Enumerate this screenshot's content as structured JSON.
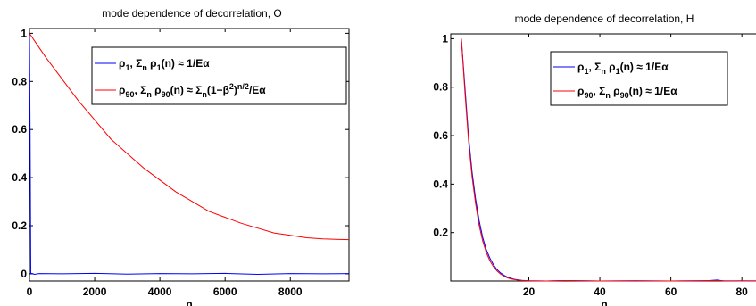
{
  "chart_data": [
    {
      "type": "line",
      "title": "mode dependence of decorrelation, O",
      "xlabel": "n",
      "ylabel": "",
      "xlim": [
        0,
        9800
      ],
      "ylim": [
        -0.03,
        1.02
      ],
      "xticks": [
        0,
        2000,
        4000,
        6000,
        8000
      ],
      "xtick_labels": [
        "0",
        "2000",
        "4000",
        "6000",
        "8000"
      ],
      "yticks": [
        0,
        0.2,
        0.4,
        0.6,
        0.8,
        1
      ],
      "ytick_labels": [
        "0",
        "0.2",
        "0.4",
        "0.6",
        "0.8",
        "1"
      ],
      "grid": false,
      "legend_position": "top-right",
      "series": [
        {
          "name_main": "ρ",
          "name_sub": "1",
          "name_rest": ", Σ",
          "name_sub2": "n",
          "name_tail": " ρ",
          "name_sub3": "1",
          "name_end": "(n) ≈ 1/Eα",
          "color": "#0000ff",
          "x": [
            0,
            20,
            40,
            80,
            150,
            300,
            1000,
            2000,
            3000,
            4000,
            5000,
            6000,
            7000,
            8000,
            9000,
            9800
          ],
          "y": [
            1.0,
            0.6,
            0.0,
            0.002,
            -0.002,
            0.001,
            0.0,
            0.002,
            -0.001,
            0.001,
            0.0,
            0.002,
            -0.002,
            0.001,
            0.0,
            0.001
          ]
        },
        {
          "name_main": "ρ",
          "name_sub": "90",
          "name_rest": ", Σ",
          "name_sub2": "n",
          "name_tail": " ρ",
          "name_sub3": "90",
          "name_end": "(n) ≈ Σ",
          "name_sub4": "n",
          "name_end2": "(1−β",
          "name_sup": "2",
          "name_end3": ")",
          "name_sup2": "n/2",
          "name_end4": "/Eα",
          "color": "#ff0000",
          "x": [
            0,
            200,
            500,
            1000,
            1500,
            2000,
            2500,
            3000,
            3500,
            4000,
            4500,
            5000,
            5500,
            6000,
            6500,
            7000,
            7500,
            8000,
            8500,
            9000,
            9500,
            9800
          ],
          "y": [
            1.0,
            0.96,
            0.9,
            0.81,
            0.72,
            0.64,
            0.56,
            0.5,
            0.44,
            0.39,
            0.34,
            0.3,
            0.26,
            0.235,
            0.21,
            0.19,
            0.17,
            0.16,
            0.15,
            0.145,
            0.143,
            0.142
          ]
        }
      ]
    },
    {
      "type": "line",
      "title": "mode dependence of decorrelation, H",
      "xlabel": "n",
      "ylabel": "",
      "xlim": [
        -2,
        88
      ],
      "ylim": [
        0,
        1.02
      ],
      "xticks": [
        20,
        40,
        60,
        80
      ],
      "xtick_labels": [
        "20",
        "40",
        "60",
        "80"
      ],
      "yticks": [
        0.2,
        0.4,
        0.6,
        0.8,
        1
      ],
      "ytick_labels": [
        "0.2",
        "0.4",
        "0.6",
        "0.8",
        "1"
      ],
      "grid": false,
      "legend_position": "top-right",
      "series": [
        {
          "name_main": "ρ",
          "name_sub": "1",
          "name_rest": ", Σ",
          "name_sub2": "n",
          "name_tail": " ρ",
          "name_sub3": "1",
          "name_end": "(n) ≈ 1/Eα",
          "color": "#0000ff",
          "x": [
            1,
            2,
            3,
            4,
            5,
            6,
            7,
            8,
            9,
            10,
            11,
            12,
            13,
            14,
            15,
            16,
            18,
            20,
            25,
            30,
            40,
            50,
            60,
            70,
            73,
            75,
            80,
            87
          ],
          "y": [
            1.0,
            0.8,
            0.6,
            0.45,
            0.34,
            0.25,
            0.18,
            0.13,
            0.095,
            0.068,
            0.048,
            0.034,
            0.024,
            0.016,
            0.011,
            0.007,
            0.003,
            0.001,
            0.0,
            0.002,
            0.0,
            0.001,
            0.0,
            0.001,
            0.004,
            0.0,
            0.001,
            0.0
          ]
        },
        {
          "name_main": "ρ",
          "name_sub": "90",
          "name_rest": ", Σ",
          "name_sub2": "n",
          "name_tail": " ρ",
          "name_sub3": "90",
          "name_end": "(n) ≈ 1/Eα",
          "color": "#ff0000",
          "x": [
            1,
            2,
            3,
            4,
            5,
            6,
            7,
            8,
            9,
            10,
            11,
            12,
            13,
            14,
            15,
            16,
            18,
            20,
            25,
            30,
            40,
            50,
            60,
            70,
            80,
            87
          ],
          "y": [
            1.0,
            0.78,
            0.58,
            0.43,
            0.32,
            0.23,
            0.165,
            0.118,
            0.084,
            0.06,
            0.042,
            0.029,
            0.02,
            0.013,
            0.009,
            0.006,
            0.002,
            0.001,
            0.0,
            0.002,
            0.0,
            0.001,
            0.0,
            0.002,
            0.0,
            0.001
          ]
        }
      ]
    }
  ]
}
